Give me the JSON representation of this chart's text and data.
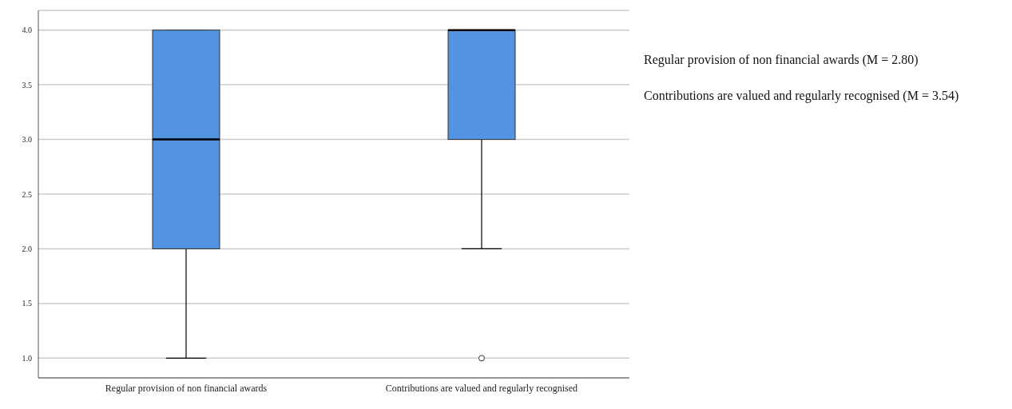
{
  "chart_data": {
    "type": "box",
    "categories": [
      "Regular provision of non financial awards",
      "Contributions are valued and regularly recognised"
    ],
    "boxes": [
      {
        "low": 1,
        "q1": 2,
        "median": 3,
        "q3": 4,
        "high": 4
      },
      {
        "low": 2,
        "q1": 3,
        "median": 4,
        "q3": 4,
        "high": 4,
        "outliers": [
          1
        ]
      }
    ],
    "color": "#5294e2",
    "ylim": [
      0.82,
      4.18
    ],
    "yticks": [
      {
        "value": 1,
        "label": "1.0"
      },
      {
        "value": 1.5,
        "label": "1.5"
      },
      {
        "value": 2,
        "label": "2.0"
      },
      {
        "value": 2.5,
        "label": "2.5"
      },
      {
        "value": 3,
        "label": "3.0"
      },
      {
        "value": 3.5,
        "label": "3.5"
      },
      {
        "value": 4,
        "label": "4.0"
      }
    ],
    "grid": "y",
    "annotations": [
      "Regular provision of non financial awards (M = 2.80)",
      "Contributions are valued and regularly recognised (M = 3.54)"
    ]
  }
}
